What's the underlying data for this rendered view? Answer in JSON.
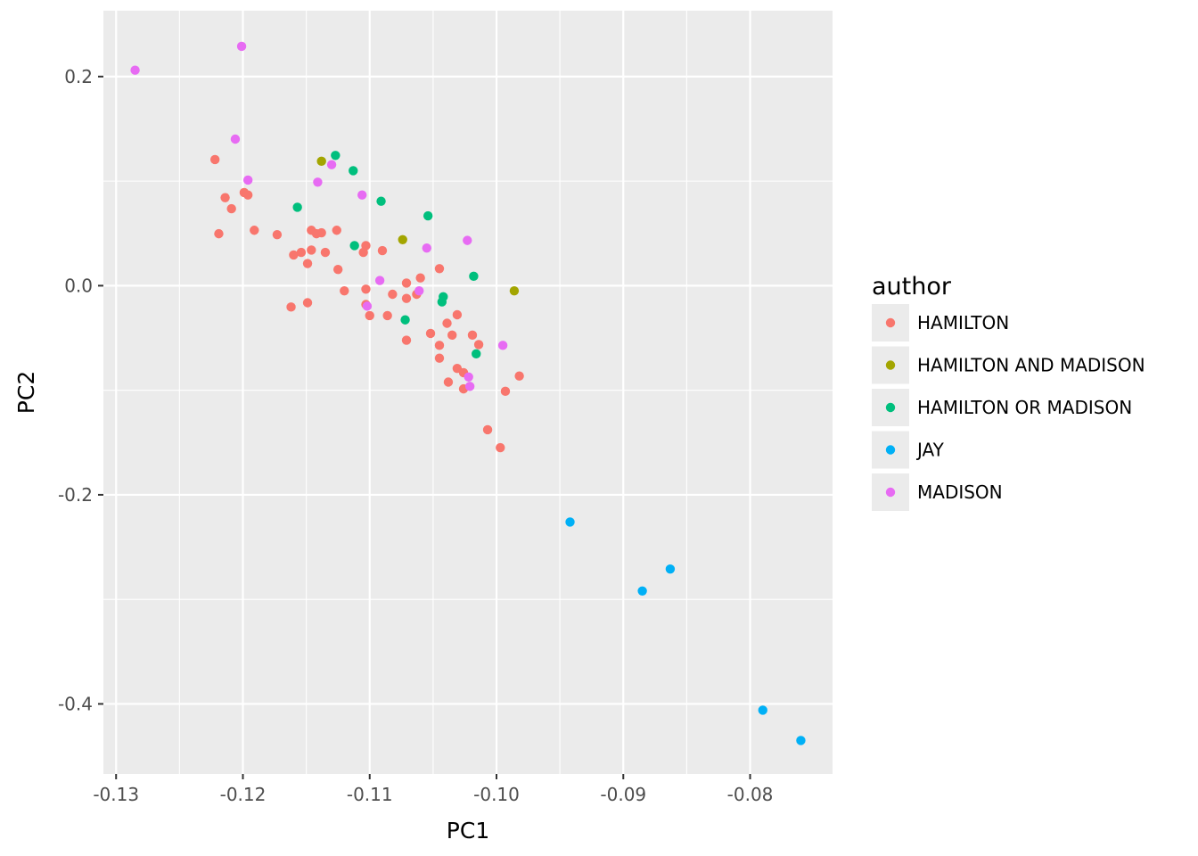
{
  "chart_data": {
    "type": "scatter",
    "xlabel": "PC1",
    "ylabel": "PC2",
    "xlim": [
      -0.131,
      -0.0735
    ],
    "ylim": [
      -0.467,
      0.263
    ],
    "x_ticks": [
      -0.13,
      -0.12,
      -0.11,
      -0.1,
      -0.09,
      -0.08
    ],
    "x_tick_labels": [
      "-0.13",
      "-0.12",
      "-0.11",
      "-0.10",
      "-0.09",
      "-0.08"
    ],
    "y_ticks": [
      0.2,
      0.0,
      -0.2,
      -0.4
    ],
    "y_tick_labels": [
      "0.2",
      "0.0",
      "-0.2",
      "-0.4"
    ],
    "grid": true,
    "panel_background": "#ebebeb",
    "legend": {
      "title": "author",
      "position": "right"
    },
    "series": [
      {
        "name": "HAMILTON",
        "color": "#f8766d",
        "points": [
          [
            -0.1222,
            0.1206
          ],
          [
            -0.1214,
            0.0842
          ],
          [
            -0.1209,
            0.0736
          ],
          [
            -0.1219,
            0.0497
          ],
          [
            -0.1199,
            0.0891
          ],
          [
            -0.1196,
            0.0867
          ],
          [
            -0.1191,
            0.053
          ],
          [
            -0.1173,
            0.0488
          ],
          [
            -0.116,
            0.0294
          ],
          [
            -0.1154,
            0.0318
          ],
          [
            -0.1149,
            0.0212
          ],
          [
            -0.1146,
            0.053
          ],
          [
            -0.1146,
            0.0341
          ],
          [
            -0.1142,
            0.0497
          ],
          [
            -0.1138,
            0.0506
          ],
          [
            -0.1135,
            0.0318
          ],
          [
            -0.1126,
            0.053
          ],
          [
            -0.1125,
            0.0155
          ],
          [
            -0.112,
            -0.0049
          ],
          [
            -0.1162,
            -0.0204
          ],
          [
            -0.1149,
            -0.0163
          ],
          [
            -0.1105,
            0.0318
          ],
          [
            -0.1103,
            0.0383
          ],
          [
            -0.1103,
            -0.0033
          ],
          [
            -0.1103,
            -0.018
          ],
          [
            -0.11,
            -0.0286
          ],
          [
            -0.109,
            0.0335
          ],
          [
            -0.1086,
            -0.0286
          ],
          [
            -0.1082,
            -0.0082
          ],
          [
            -0.1071,
            0.0025
          ],
          [
            -0.1071,
            -0.0122
          ],
          [
            -0.1071,
            -0.0522
          ],
          [
            -0.1063,
            -0.0082
          ],
          [
            -0.106,
            0.0074
          ],
          [
            -0.1052,
            -0.0457
          ],
          [
            -0.1045,
            0.0163
          ],
          [
            -0.1045,
            -0.0571
          ],
          [
            -0.1045,
            -0.0693
          ],
          [
            -0.1039,
            -0.0359
          ],
          [
            -0.1038,
            -0.0922
          ],
          [
            -0.1035,
            -0.0473
          ],
          [
            -0.1031,
            -0.0278
          ],
          [
            -0.1031,
            -0.0791
          ],
          [
            -0.1026,
            -0.0832
          ],
          [
            -0.1026,
            -0.0987
          ],
          [
            -0.1019,
            -0.0473
          ],
          [
            -0.1014,
            -0.0563
          ],
          [
            -0.1007,
            -0.1378
          ],
          [
            -0.0997,
            -0.1549
          ],
          [
            -0.0993,
            -0.101
          ],
          [
            -0.0982,
            -0.0864
          ]
        ]
      },
      {
        "name": "HAMILTON AND MADISON",
        "color": "#a3a500",
        "points": [
          [
            -0.1138,
            0.119
          ],
          [
            -0.1074,
            0.044
          ],
          [
            -0.0986,
            -0.0049
          ]
        ]
      },
      {
        "name": "HAMILTON OR MADISON",
        "color": "#00bf7d",
        "points": [
          [
            -0.1127,
            0.1246
          ],
          [
            -0.1113,
            0.11
          ],
          [
            -0.1157,
            0.075
          ],
          [
            -0.1091,
            0.0808
          ],
          [
            -0.1054,
            0.0668
          ],
          [
            -0.1112,
            0.0383
          ],
          [
            -0.1018,
            0.009
          ],
          [
            -0.1042,
            -0.0106
          ],
          [
            -0.1043,
            -0.0155
          ],
          [
            -0.1072,
            -0.0327
          ],
          [
            -0.1016,
            -0.0652
          ]
        ]
      },
      {
        "name": "JAY",
        "color": "#00b0f6",
        "points": [
          [
            -0.0942,
            -0.226
          ],
          [
            -0.0885,
            -0.292
          ],
          [
            -0.0863,
            -0.271
          ],
          [
            -0.079,
            -0.406
          ],
          [
            -0.076,
            -0.435
          ]
        ]
      },
      {
        "name": "MADISON",
        "color": "#e76bf3",
        "points": [
          [
            -0.1285,
            0.2061
          ],
          [
            -0.1201,
            0.2289
          ],
          [
            -0.1206,
            0.1402
          ],
          [
            -0.1196,
            0.101
          ],
          [
            -0.113,
            0.1157
          ],
          [
            -0.1141,
            0.099
          ],
          [
            -0.1106,
            0.0867
          ],
          [
            -0.1055,
            0.036
          ],
          [
            -0.1023,
            0.0433
          ],
          [
            -0.1092,
            0.005
          ],
          [
            -0.1061,
            -0.0049
          ],
          [
            -0.1102,
            -0.0196
          ],
          [
            -0.0995,
            -0.0571
          ],
          [
            -0.1022,
            -0.0873
          ],
          [
            -0.1021,
            -0.0963
          ]
        ]
      }
    ]
  }
}
